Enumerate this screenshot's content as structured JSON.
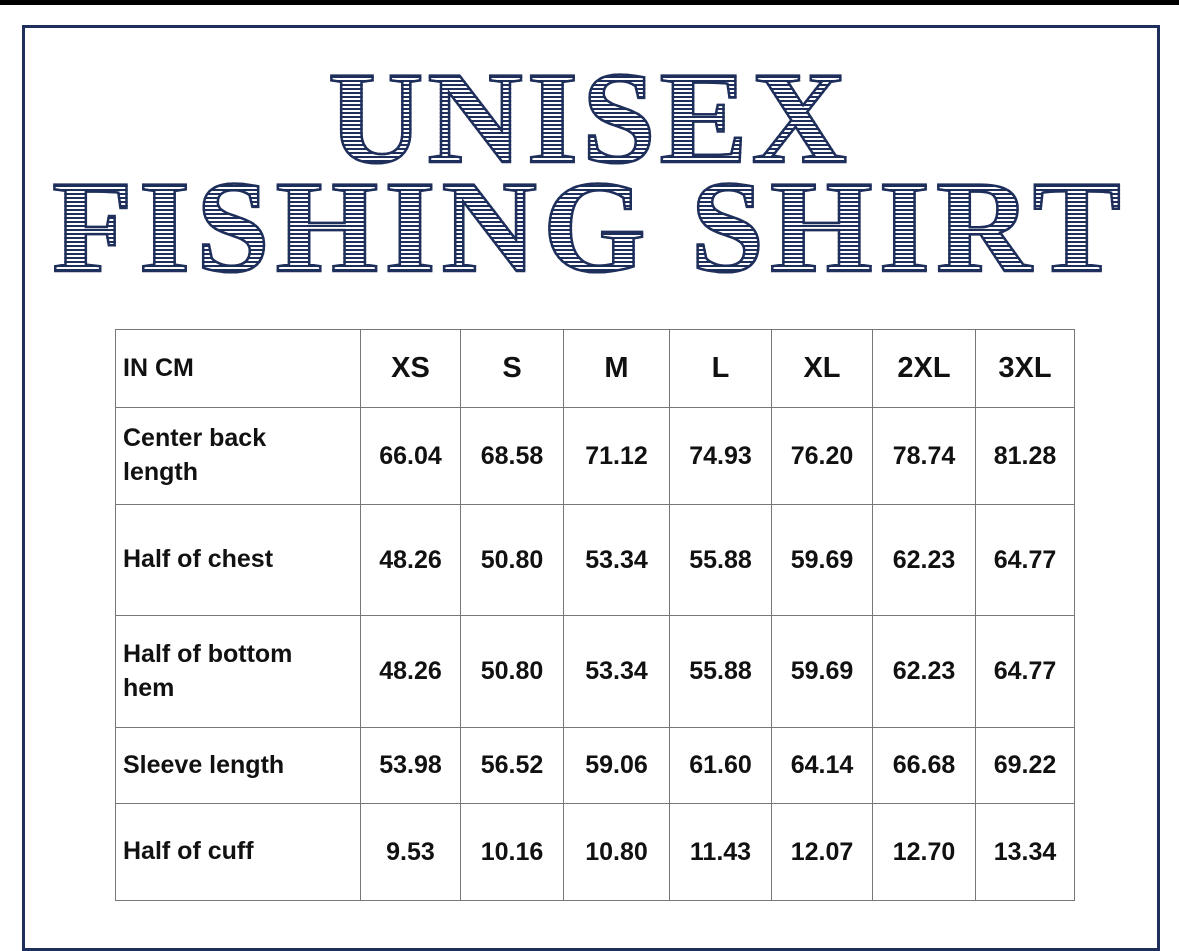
{
  "title": {
    "line1": "UNISEX",
    "line2": "FISHING SHIRT"
  },
  "colors": {
    "brand": "#1f2f5c"
  },
  "table": {
    "corner": "IN CM",
    "sizes": [
      "XS",
      "S",
      "M",
      "L",
      "XL",
      "2XL",
      "3XL"
    ],
    "rows": [
      {
        "label": "Center back\n length",
        "values": [
          "66.04",
          "68.58",
          "71.12",
          "74.93",
          "76.20",
          "78.74",
          "81.28"
        ]
      },
      {
        "label": "Half of chest",
        "values": [
          "48.26",
          "50.80",
          "53.34",
          "55.88",
          "59.69",
          "62.23",
          "64.77"
        ]
      },
      {
        "label": "Half of bottom hem",
        "values": [
          "48.26",
          "50.80",
          "53.34",
          "55.88",
          "59.69",
          "62.23",
          "64.77"
        ]
      },
      {
        "label": "Sleeve length",
        "values": [
          "53.98",
          "56.52",
          "59.06",
          "61.60",
          "64.14",
          "66.68",
          "69.22"
        ]
      },
      {
        "label": "Half of  cuff",
        "values": [
          "9.53",
          "10.16",
          "10.80",
          "11.43",
          "12.07",
          "12.70",
          "13.34"
        ]
      }
    ]
  }
}
